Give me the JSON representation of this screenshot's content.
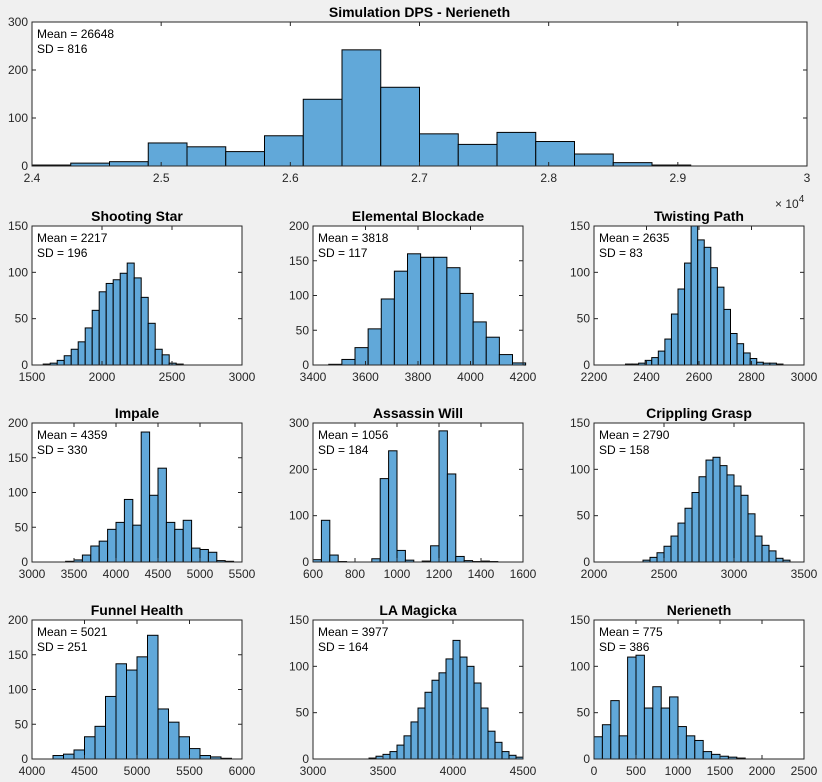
{
  "figure": {
    "background": "#f0f0f0",
    "bar_color": "#61a8d9"
  },
  "chart_data": [
    {
      "type": "histogram",
      "title": "Simulation DPS - Nerieneth",
      "mean_label": "Mean = 26648",
      "sd_label": "SD = 816",
      "xlim": [
        24000,
        30000
      ],
      "ylim": [
        0,
        300
      ],
      "xticks": [
        24000,
        25000,
        26000,
        27000,
        28000,
        29000,
        30000
      ],
      "xtick_labels": [
        "2.4",
        "2.5",
        "2.6",
        "2.7",
        "2.8",
        "2.9",
        "3"
      ],
      "yticks": [
        0,
        100,
        200,
        300
      ],
      "ytick_labels": [
        "0",
        "100",
        "200",
        "300"
      ],
      "x_exponent_label": "× 10",
      "x_exponent_power": "4",
      "bin_start": 24000,
      "bin_width": 300,
      "values": [
        2,
        6,
        9,
        48,
        40,
        30,
        63,
        139,
        242,
        164,
        67,
        45,
        70,
        51,
        25,
        7,
        2
      ]
    },
    {
      "type": "histogram",
      "title": "Shooting Star",
      "mean_label": "Mean = 2217",
      "sd_label": "SD = 196",
      "xlim": [
        1500,
        3000
      ],
      "ylim": [
        0,
        150
      ],
      "xticks": [
        1500,
        2000,
        2500,
        3000
      ],
      "xtick_labels": [
        "1500",
        "2000",
        "2500",
        "3000"
      ],
      "yticks": [
        0,
        50,
        100,
        150
      ],
      "ytick_labels": [
        "0",
        "50",
        "100",
        "150"
      ],
      "bin_start": 1580,
      "bin_width": 50,
      "values": [
        1,
        2,
        5,
        10,
        17,
        25,
        40,
        59,
        79,
        88,
        92,
        99,
        110,
        94,
        73,
        45,
        17,
        11,
        2,
        1
      ]
    },
    {
      "type": "histogram",
      "title": "Elemental Blockade",
      "mean_label": "Mean = 3818",
      "sd_label": "SD = 117",
      "xlim": [
        3400,
        4200
      ],
      "ylim": [
        0,
        200
      ],
      "xticks": [
        3400,
        3600,
        3800,
        4000,
        4200
      ],
      "xtick_labels": [
        "3400",
        "3600",
        "3800",
        "4000",
        "4200"
      ],
      "yticks": [
        0,
        50,
        100,
        150,
        200
      ],
      "ytick_labels": [
        "0",
        "50",
        "100",
        "150",
        "200"
      ],
      "bin_start": 3460,
      "bin_width": 50,
      "values": [
        1,
        8,
        25,
        52,
        95,
        135,
        160,
        155,
        155,
        140,
        103,
        62,
        40,
        15,
        3
      ]
    },
    {
      "type": "histogram",
      "title": "Twisting Path",
      "mean_label": "Mean = 2635",
      "sd_label": "SD = 83",
      "xlim": [
        2200,
        3000
      ],
      "ylim": [
        0,
        150
      ],
      "xticks": [
        2200,
        2400,
        2600,
        2800,
        3000
      ],
      "xtick_labels": [
        "2200",
        "2400",
        "2600",
        "2800",
        "3000"
      ],
      "yticks": [
        0,
        50,
        100,
        150
      ],
      "ytick_labels": [
        "0",
        "50",
        "100",
        "150"
      ],
      "bin_start": 2320,
      "bin_width": 25,
      "values": [
        1,
        1,
        2,
        5,
        8,
        15,
        28,
        55,
        82,
        110,
        150,
        135,
        127,
        105,
        84,
        60,
        34,
        23,
        13,
        7,
        3,
        2,
        2,
        1
      ]
    },
    {
      "type": "histogram",
      "title": "Impale",
      "mean_label": "Mean = 4359",
      "sd_label": "SD = 330",
      "xlim": [
        3000,
        5500
      ],
      "ylim": [
        0,
        200
      ],
      "xticks": [
        3000,
        3500,
        4000,
        4500,
        5000,
        5500
      ],
      "xtick_labels": [
        "3000",
        "3500",
        "4000",
        "4500",
        "5000",
        "5500"
      ],
      "yticks": [
        0,
        50,
        100,
        150,
        200
      ],
      "ytick_labels": [
        "0",
        "50",
        "100",
        "150",
        "200"
      ],
      "bin_start": 3400,
      "bin_width": 100,
      "values": [
        1,
        3,
        10,
        23,
        30,
        47,
        57,
        90,
        53,
        187,
        96,
        135,
        57,
        47,
        60,
        20,
        18,
        14,
        2,
        1
      ]
    },
    {
      "type": "histogram",
      "title": "Assassin Will",
      "mean_label": "Mean = 1056",
      "sd_label": "SD = 184",
      "xlim": [
        600,
        1600
      ],
      "ylim": [
        0,
        300
      ],
      "xticks": [
        600,
        800,
        1000,
        1200,
        1400,
        1600
      ],
      "xtick_labels": [
        "600",
        "800",
        "1000",
        "1200",
        "1400",
        "1600"
      ],
      "yticks": [
        0,
        100,
        200,
        300
      ],
      "ytick_labels": [
        "0",
        "100",
        "200",
        "300"
      ],
      "bin_start": 600,
      "bin_width": 40,
      "values": [
        5,
        90,
        15,
        1,
        0,
        0,
        0,
        7,
        180,
        240,
        25,
        4,
        0,
        2,
        35,
        283,
        190,
        12,
        3,
        1,
        2,
        1
      ]
    },
    {
      "type": "histogram",
      "title": "Crippling Grasp",
      "mean_label": "Mean = 2790",
      "sd_label": "SD = 158",
      "xlim": [
        2000,
        3500
      ],
      "ylim": [
        0,
        150
      ],
      "xticks": [
        2000,
        2500,
        3000,
        3500
      ],
      "xtick_labels": [
        "2000",
        "2500",
        "3000",
        "3500"
      ],
      "yticks": [
        0,
        50,
        100,
        150
      ],
      "ytick_labels": [
        "0",
        "50",
        "100",
        "150"
      ],
      "bin_start": 2350,
      "bin_width": 50,
      "values": [
        2,
        5,
        10,
        17,
        28,
        42,
        58,
        75,
        92,
        110,
        113,
        104,
        94,
        82,
        72,
        52,
        28,
        18,
        12,
        4,
        2
      ]
    },
    {
      "type": "histogram",
      "title": "Funnel Health",
      "mean_label": "Mean = 5021",
      "sd_label": "SD = 251",
      "xlim": [
        4000,
        6000
      ],
      "ylim": [
        0,
        200
      ],
      "xticks": [
        4000,
        4500,
        5000,
        5500,
        6000
      ],
      "xtick_labels": [
        "4000",
        "4500",
        "5000",
        "5500",
        "6000"
      ],
      "yticks": [
        0,
        50,
        100,
        150,
        200
      ],
      "ytick_labels": [
        "0",
        "50",
        "100",
        "150",
        "200"
      ],
      "bin_start": 4200,
      "bin_width": 100,
      "values": [
        5,
        7,
        13,
        32,
        47,
        90,
        137,
        128,
        147,
        178,
        72,
        53,
        32,
        15,
        5,
        3,
        1
      ]
    },
    {
      "type": "histogram",
      "title": "LA Magicka",
      "mean_label": "Mean = 3977",
      "sd_label": "SD = 164",
      "xlim": [
        3000,
        4500
      ],
      "ylim": [
        0,
        150
      ],
      "xticks": [
        3000,
        3500,
        4000,
        4500
      ],
      "xtick_labels": [
        "3000",
        "3500",
        "4000",
        "4500"
      ],
      "yticks": [
        0,
        50,
        100,
        150
      ],
      "ytick_labels": [
        "0",
        "50",
        "100",
        "150"
      ],
      "bin_start": 3400,
      "bin_width": 50,
      "values": [
        1,
        3,
        5,
        8,
        15,
        25,
        40,
        55,
        72,
        85,
        93,
        108,
        128,
        110,
        100,
        82,
        55,
        30,
        18,
        8,
        4,
        2
      ]
    },
    {
      "type": "histogram",
      "title": "Nerieneth",
      "mean_label": "Mean = 775",
      "sd_label": "SD = 386",
      "xlim": [
        0,
        2500
      ],
      "ylim": [
        0,
        150
      ],
      "xticks": [
        0,
        500,
        1000,
        1500,
        2000,
        2500
      ],
      "xtick_labels": [
        "0",
        "500",
        "1000",
        "1500",
        "2000",
        "2500"
      ],
      "yticks": [
        0,
        50,
        100,
        150
      ],
      "ytick_labels": [
        "0",
        "50",
        "100",
        "150"
      ],
      "bin_start": 0,
      "bin_width": 100,
      "values": [
        24,
        37,
        63,
        25,
        110,
        112,
        55,
        78,
        55,
        67,
        35,
        25,
        20,
        8,
        5,
        3,
        2,
        1
      ]
    }
  ]
}
